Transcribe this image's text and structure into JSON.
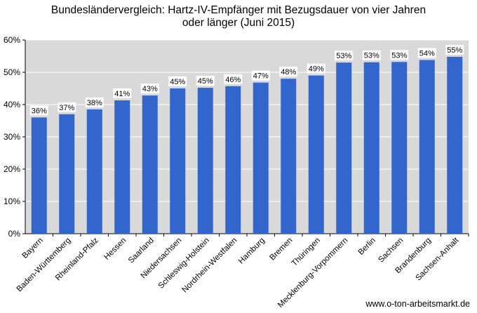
{
  "source_credit": "www.o-ton-arbeitsmarkt.de",
  "colors": {
    "bar": "#3366cc",
    "plot_bg": "#d9d9d9",
    "grid": "#ffffff"
  },
  "chart_data": {
    "type": "bar",
    "title_lines": [
      "Bundesländervergleich: Hartz-IV-Empfänger mit Bezugsdauer von vier Jahren",
      "oder länger (Juni 2015)"
    ],
    "categories": [
      "Bayern",
      "Baden-Württemberg",
      "Rheinland-Pfalz",
      "Hessen",
      "Saarland",
      "Niedersachsen",
      "Schleswig-Holstein",
      "Nordrhein-Westfalen",
      "Hamburg",
      "Bremen",
      "Thüringen",
      "Mecklenburg-Vorpommern",
      "Berlin",
      "Sachsen",
      "Brandenburg",
      "Sachsen-Anhalt"
    ],
    "values": [
      36,
      37,
      38.5,
      41.3,
      42.8,
      45,
      45.2,
      45.7,
      46.8,
      48,
      49,
      53,
      53.1,
      53.2,
      53.8,
      54.8
    ],
    "data_labels": [
      "36%",
      "37%",
      "38%",
      "41%",
      "43%",
      "45%",
      "45%",
      "46%",
      "47%",
      "48%",
      "49%",
      "53%",
      "53%",
      "53%",
      "54%",
      "55%"
    ],
    "ylim": [
      0,
      60
    ],
    "y_ticks": [
      0,
      10,
      20,
      30,
      40,
      50,
      60
    ],
    "y_tick_labels": [
      "0%",
      "10%",
      "20%",
      "30%",
      "40%",
      "50%",
      "60%"
    ],
    "grid": true,
    "legend": "none"
  }
}
